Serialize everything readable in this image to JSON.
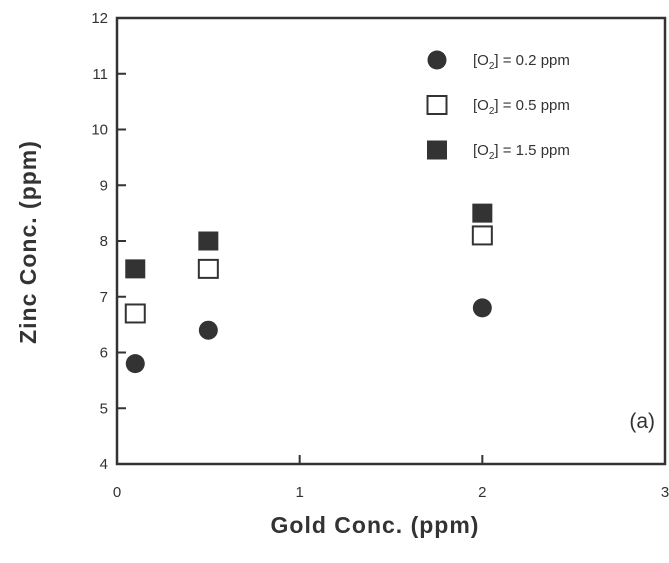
{
  "chart_data": {
    "type": "scatter",
    "xlabel": "Gold Conc. (ppm)",
    "ylabel": "Zinc Conc. (ppm)",
    "xlim": [
      0,
      3
    ],
    "ylim": [
      4,
      12
    ],
    "xticks": [
      0,
      1,
      2,
      3
    ],
    "yticks": [
      4,
      5,
      6,
      7,
      8,
      9,
      10,
      11,
      12
    ],
    "panel_label": "(a)",
    "legend_position": "top-right",
    "grid": false,
    "series": [
      {
        "name": "[O2] = 0.2 ppm",
        "legend_prefix": "[O",
        "legend_sub": "2",
        "legend_suffix": "] = 0.2 ppm",
        "marker": "filled-circle",
        "x": [
          0.1,
          0.5,
          2.0
        ],
        "y": [
          5.8,
          6.4,
          6.8
        ]
      },
      {
        "name": "[O2] = 0.5 ppm",
        "legend_prefix": "[O",
        "legend_sub": "2",
        "legend_suffix": "] = 0.5 ppm",
        "marker": "open-square",
        "x": [
          0.1,
          0.5,
          2.0
        ],
        "y": [
          6.7,
          7.5,
          8.1
        ]
      },
      {
        "name": "[O2] = 1.5 ppm",
        "legend_prefix": "[O",
        "legend_sub": "2",
        "legend_suffix": "] = 1.5 ppm",
        "marker": "filled-square",
        "x": [
          0.1,
          0.5,
          2.0
        ],
        "y": [
          7.5,
          8.0,
          8.5
        ]
      }
    ],
    "colors": {
      "marker": "#333333",
      "axis": "#333333"
    }
  }
}
